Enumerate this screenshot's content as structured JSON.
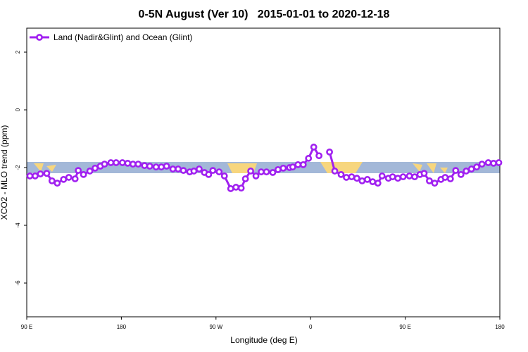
{
  "chart_data": {
    "type": "line",
    "title": "0-5N August (Ver 10)   2015-01-01 to 2020-12-18",
    "x_label": "Longitude (deg E)",
    "y_label": "XCO2 - MLO trend (ppm)",
    "xlim": [
      90,
      540
    ],
    "ylim": [
      -7.17,
      2.83
    ],
    "xticks": [
      {
        "value": 90,
        "label": "90 E"
      },
      {
        "value": 180,
        "label": "180"
      },
      {
        "value": 270,
        "label": "90 W"
      },
      {
        "value": 360,
        "label": "0"
      },
      {
        "value": 450,
        "label": "90 E"
      },
      {
        "value": 540,
        "label": "180"
      }
    ],
    "yticks": [
      2,
      0,
      -2,
      -4,
      -6
    ],
    "legend": "top-left",
    "x": [
      93,
      98,
      103,
      109,
      114,
      119,
      125,
      130,
      136,
      139,
      144,
      150,
      155,
      160,
      164,
      170,
      175,
      181,
      186,
      191,
      196,
      202,
      207,
      213,
      218,
      223,
      229,
      234,
      239,
      245,
      249,
      254,
      259,
      263,
      267,
      273,
      278,
      284,
      289,
      294,
      298,
      303,
      308,
      313,
      318,
      324,
      329,
      334,
      340,
      343,
      348,
      353,
      358,
      363,
      368,
      373,
      378,
      383,
      389,
      394,
      399,
      404,
      409,
      414,
      419,
      424,
      428,
      434,
      438,
      443,
      448,
      454,
      459,
      464,
      468,
      473,
      478,
      484,
      488,
      493,
      498,
      503,
      508,
      513,
      518,
      523,
      529,
      534,
      539
    ],
    "series": [
      {
        "name": "Land (Nadir&Glint) and Ocean (Glint)",
        "color": "#a020f0",
        "values": [
          -2.29,
          -2.29,
          -2.22,
          -2.2,
          -2.46,
          -2.54,
          -2.41,
          -2.34,
          -2.39,
          -2.1,
          -2.24,
          -2.12,
          -2.02,
          -1.95,
          -1.88,
          -1.83,
          -1.83,
          -1.83,
          -1.85,
          -1.88,
          -1.88,
          -1.93,
          -1.95,
          -1.98,
          -1.98,
          -1.95,
          -2.05,
          -2.05,
          -2.1,
          -2.15,
          -2.12,
          -2.05,
          -2.17,
          -2.24,
          -2.1,
          -2.15,
          -2.29,
          -2.73,
          -2.68,
          -2.71,
          -2.39,
          -2.12,
          -2.29,
          -2.15,
          -2.15,
          -2.17,
          -2.07,
          -2.02,
          -2.0,
          -1.98,
          -1.9,
          -1.9,
          -1.68,
          -1.29,
          -1.59,
          null,
          -1.46,
          -2.12,
          -2.24,
          -2.34,
          -2.32,
          -2.37,
          -2.46,
          -2.41,
          -2.49,
          -2.54,
          -2.29,
          -2.37,
          -2.32,
          -2.37,
          -2.32,
          -2.29,
          -2.32,
          -2.24,
          -2.2,
          -2.46,
          -2.54,
          -2.41,
          -2.34,
          -2.39,
          -2.1,
          -2.24,
          -2.12,
          -2.05,
          -1.98,
          -1.88,
          -1.83,
          -1.85,
          -1.83
        ]
      }
    ]
  }
}
